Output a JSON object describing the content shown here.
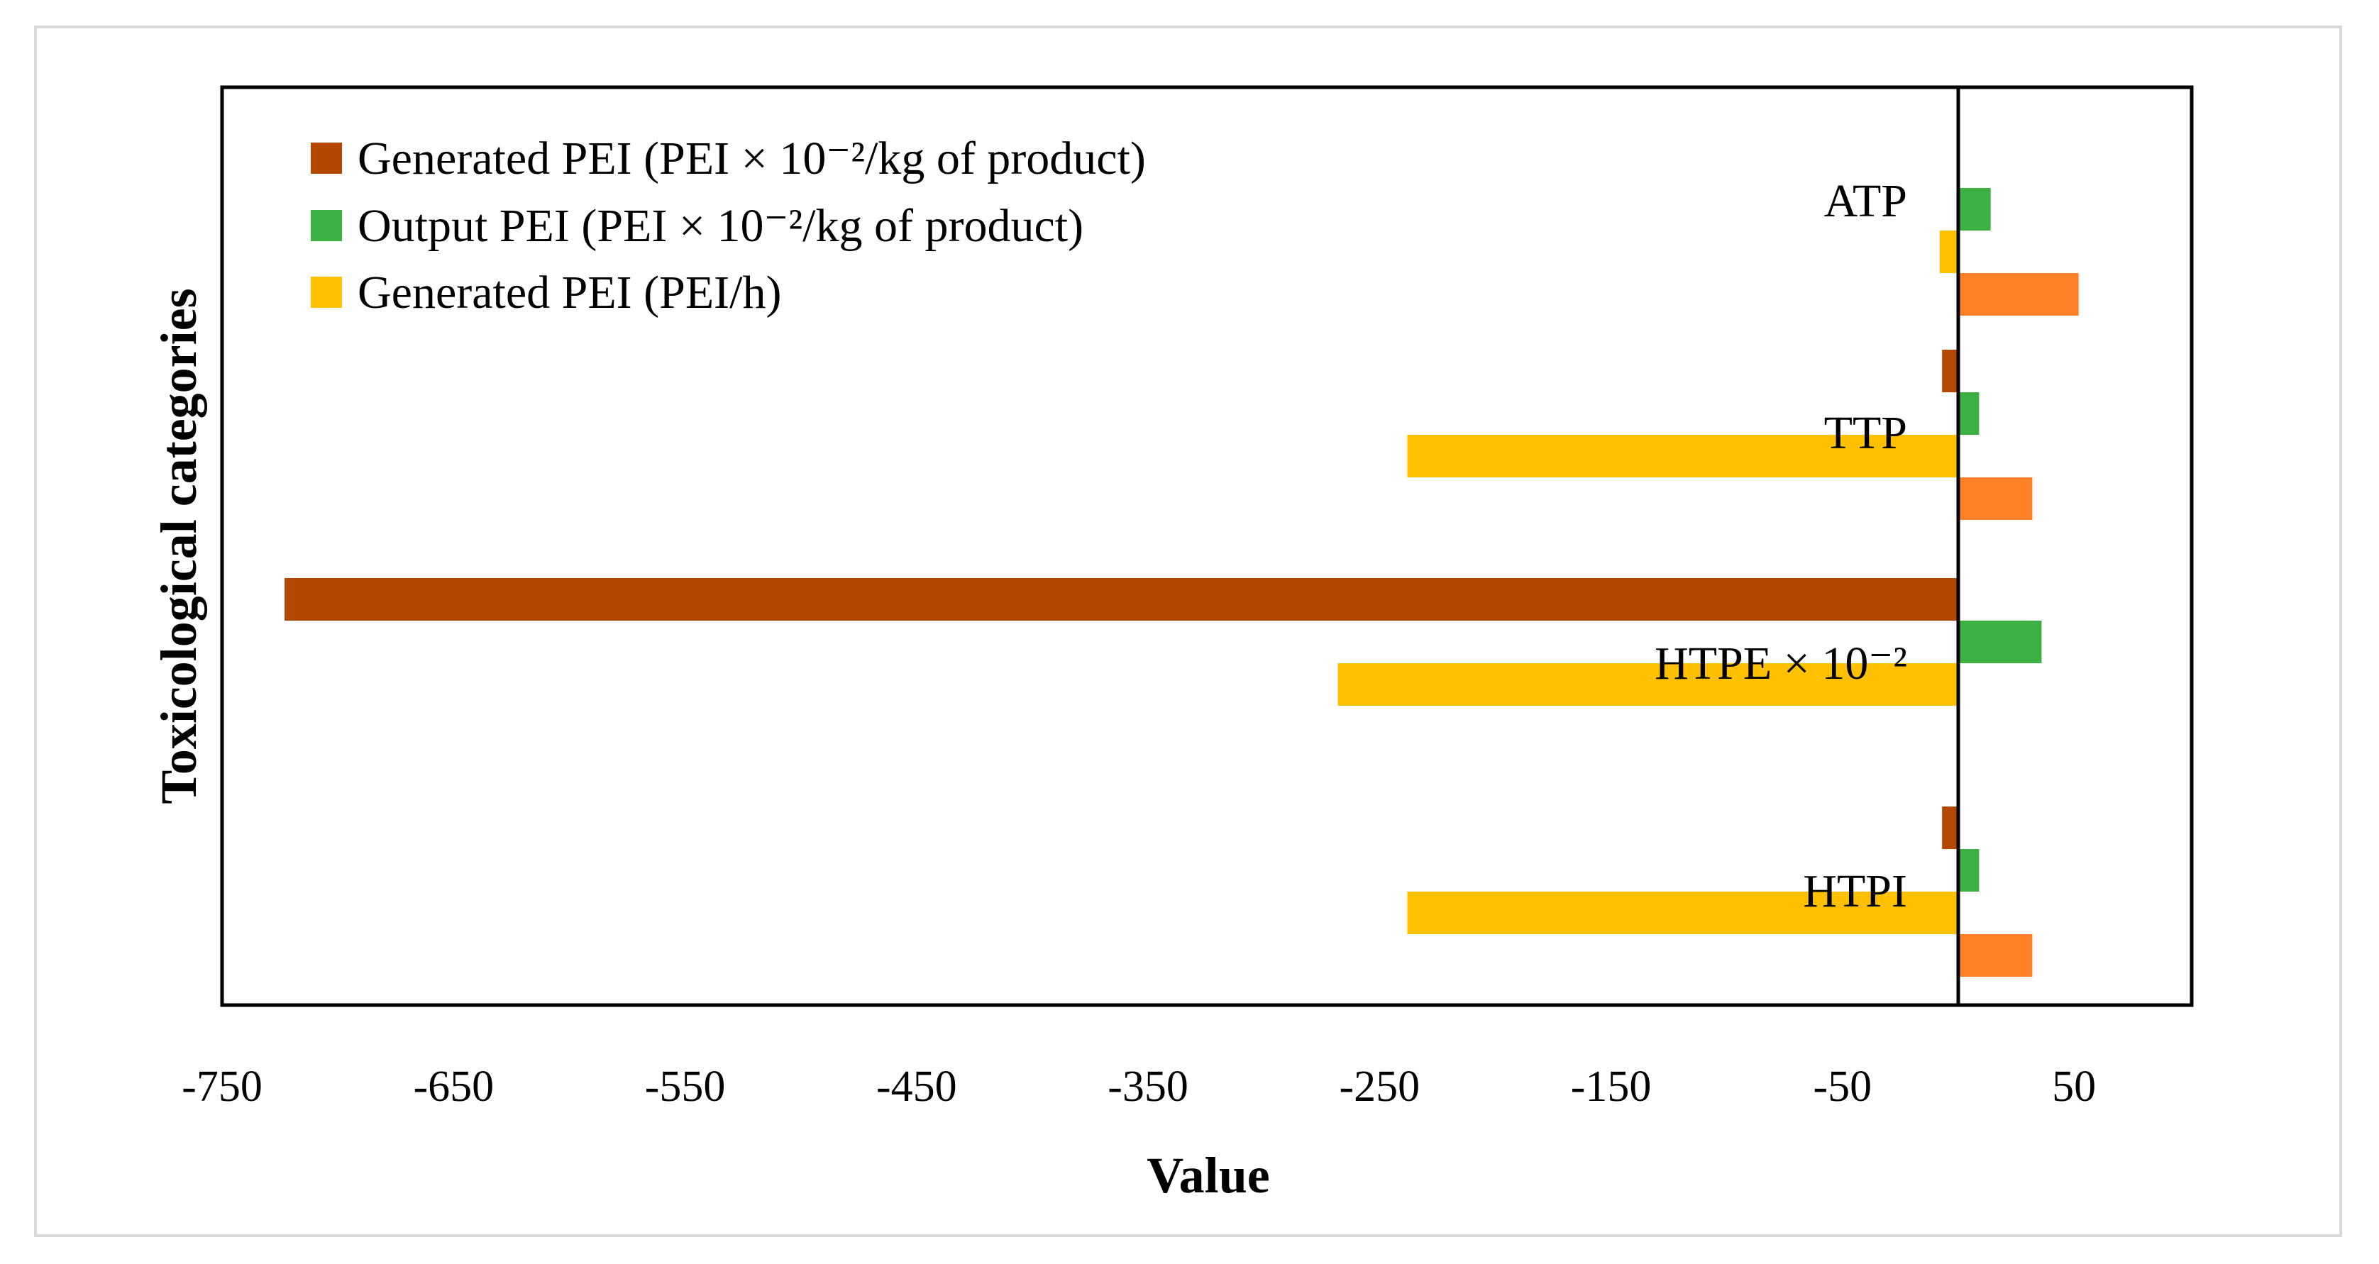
{
  "chart_data": {
    "type": "bar",
    "orientation": "horizontal",
    "title": "",
    "xlabel": "Value",
    "ylabel": "Toxicological categories",
    "xlim": [
      -750,
      100
    ],
    "x_ticks": [
      -750,
      -650,
      -550,
      -450,
      -350,
      -250,
      -150,
      -50,
      50
    ],
    "x_tick_labels": [
      "-750",
      "-650",
      "-550",
      "-450",
      "-350",
      "-250",
      "-150",
      "-50",
      "50"
    ],
    "grid": false,
    "legend_position": "top-left",
    "categories": [
      "ATP",
      "TTP",
      "HTPE × 10⁻²",
      "HTPI"
    ],
    "series": [
      {
        "name": "Generated PEI (PEI × 10⁻²/kg of product)",
        "color": "#b34700",
        "in_legend": true,
        "values": [
          0,
          -7,
          -723,
          -7
        ]
      },
      {
        "name": "Output PEI (PEI × 10⁻²/kg of product)",
        "color": "#3cb043",
        "in_legend": true,
        "values": [
          14,
          9,
          36,
          9
        ]
      },
      {
        "name": "Generated PEI (PEI/h)",
        "color": "#ffc000",
        "in_legend": true,
        "values": [
          -8,
          -238,
          -268,
          -238
        ]
      },
      {
        "name": "",
        "color": "#ff7f27",
        "in_legend": false,
        "values": [
          52,
          32,
          0,
          32
        ]
      }
    ]
  }
}
